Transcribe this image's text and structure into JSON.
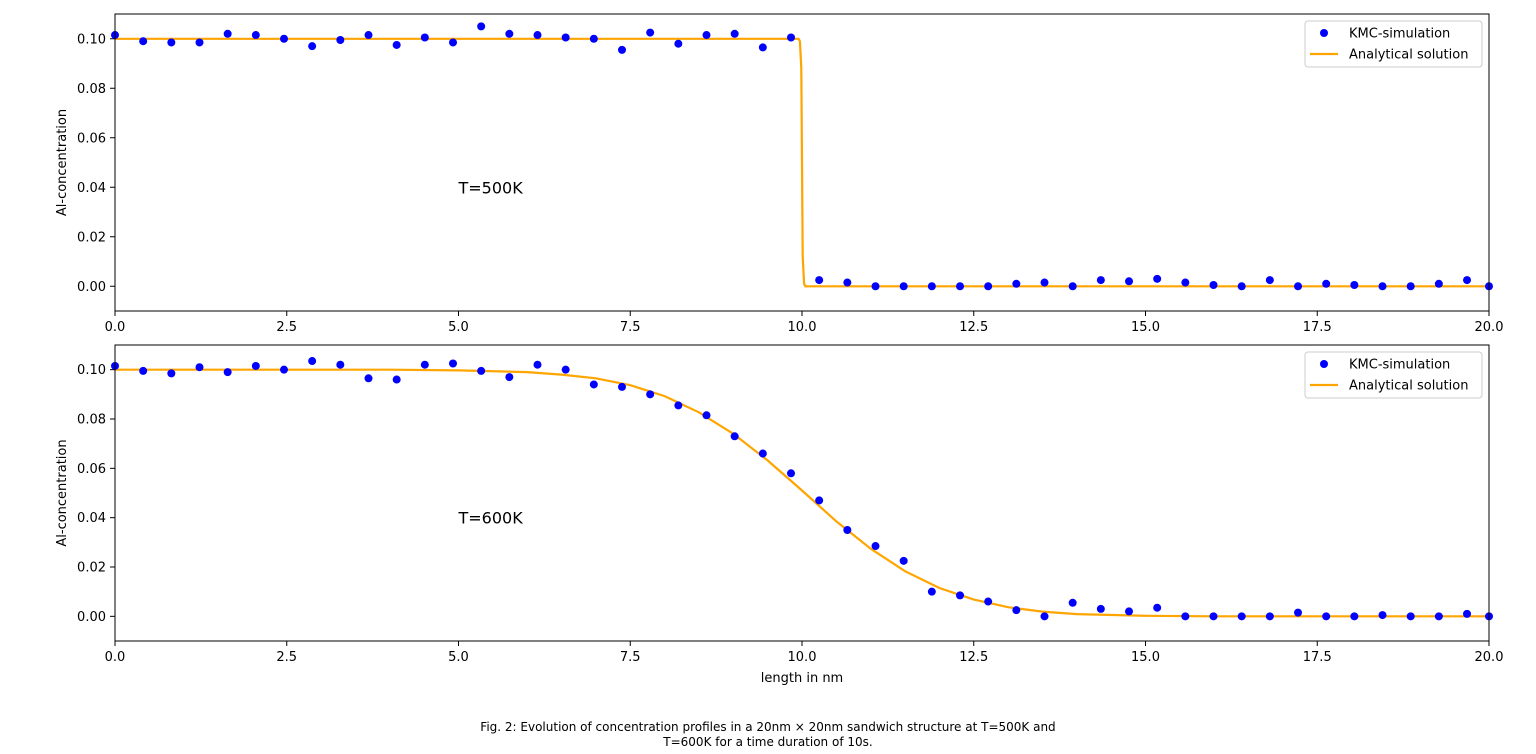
{
  "chart_data": [
    {
      "type": "scatter",
      "annotation": "T=500K",
      "xlabel": "",
      "ylabel": "Al-concentration",
      "xlim": [
        0,
        20
      ],
      "ylim": [
        -0.01,
        0.11
      ],
      "xticks": [
        "0.0",
        "2.5",
        "5.0",
        "7.5",
        "10.0",
        "12.5",
        "15.0",
        "17.5",
        "20.0"
      ],
      "yticks": [
        "0.00",
        "0.02",
        "0.04",
        "0.06",
        "0.08",
        "0.10"
      ],
      "legend": {
        "placement": "top-right",
        "entries": [
          "KMC-simulation",
          "Analytical solution"
        ]
      },
      "series": [
        {
          "name": "KMC-simulation",
          "kind": "scatter",
          "color": "#0000ff",
          "x": [
            0.0,
            0.41,
            0.82,
            1.23,
            1.64,
            2.05,
            2.46,
            2.87,
            3.28,
            3.69,
            4.1,
            4.51,
            4.92,
            5.33,
            5.74,
            6.15,
            6.56,
            6.97,
            7.38,
            7.79,
            8.2,
            8.61,
            9.02,
            9.43,
            9.84,
            10.25,
            10.66,
            11.07,
            11.48,
            11.89,
            12.3,
            12.71,
            13.12,
            13.53,
            13.94,
            14.35,
            14.76,
            15.17,
            15.58,
            15.99,
            16.4,
            16.81,
            17.22,
            17.63,
            18.04,
            18.45,
            18.86,
            19.27,
            19.68,
            20.0
          ],
          "y": [
            0.1015,
            0.099,
            0.0985,
            0.0985,
            0.102,
            0.1015,
            0.1,
            0.097,
            0.0995,
            0.1015,
            0.0975,
            0.1005,
            0.0985,
            0.105,
            0.102,
            0.1015,
            0.1005,
            0.1,
            0.0955,
            0.1025,
            0.098,
            0.1015,
            0.102,
            0.0965,
            0.1005,
            0.0025,
            0.0015,
            0.0,
            0.0,
            0.0,
            0.0,
            0.0,
            0.001,
            0.0015,
            0.0,
            0.0025,
            0.002,
            0.003,
            0.0015,
            0.0005,
            0.0,
            0.0025,
            0.0,
            0.001,
            0.0005,
            0.0,
            0.0,
            0.001,
            0.0025,
            0.0
          ]
        },
        {
          "name": "Analytical solution",
          "kind": "line",
          "color": "#ffa500",
          "x": [
            0,
            9.95,
            9.97,
            9.99,
            10.0,
            10.01,
            10.03,
            10.05,
            20
          ],
          "y": [
            0.1,
            0.1,
            0.099,
            0.088,
            0.05,
            0.012,
            0.001,
            0.0,
            0.0
          ]
        }
      ]
    },
    {
      "type": "scatter",
      "annotation": "T=600K",
      "xlabel": "length in nm",
      "ylabel": "Al-concentration",
      "xlim": [
        0,
        20
      ],
      "ylim": [
        -0.01,
        0.11
      ],
      "xticks": [
        "0.0",
        "2.5",
        "5.0",
        "7.5",
        "10.0",
        "12.5",
        "15.0",
        "17.5",
        "20.0"
      ],
      "yticks": [
        "0.00",
        "0.02",
        "0.04",
        "0.06",
        "0.08",
        "0.10"
      ],
      "legend": {
        "placement": "top-right",
        "entries": [
          "KMC-simulation",
          "Analytical solution"
        ]
      },
      "series": [
        {
          "name": "KMC-simulation",
          "kind": "scatter",
          "color": "#0000ff",
          "x": [
            0.0,
            0.41,
            0.82,
            1.23,
            1.64,
            2.05,
            2.46,
            2.87,
            3.28,
            3.69,
            4.1,
            4.51,
            4.92,
            5.33,
            5.74,
            6.15,
            6.56,
            6.97,
            7.38,
            7.79,
            8.2,
            8.61,
            9.02,
            9.43,
            9.84,
            10.25,
            10.66,
            11.07,
            11.48,
            11.89,
            12.3,
            12.71,
            13.12,
            13.53,
            13.94,
            14.35,
            14.76,
            15.17,
            15.58,
            15.99,
            16.4,
            16.81,
            17.22,
            17.63,
            18.04,
            18.45,
            18.86,
            19.27,
            19.68,
            20.0
          ],
          "y": [
            0.1015,
            0.0995,
            0.0985,
            0.101,
            0.099,
            0.1015,
            0.1,
            0.1035,
            0.102,
            0.0965,
            0.096,
            0.102,
            0.1025,
            0.0995,
            0.097,
            0.102,
            0.1,
            0.094,
            0.093,
            0.09,
            0.0855,
            0.0815,
            0.073,
            0.066,
            0.058,
            0.047,
            0.035,
            0.0285,
            0.0225,
            0.01,
            0.0085,
            0.006,
            0.0025,
            0.0,
            0.0055,
            0.003,
            0.002,
            0.0035,
            0.0,
            0.0,
            0.0,
            0.0,
            0.0015,
            0.0,
            0.0,
            0.0005,
            0.0,
            0.0,
            0.001,
            0.0
          ]
        },
        {
          "name": "Analytical solution",
          "kind": "line",
          "color": "#ffa500",
          "x": [
            0,
            2,
            4,
            5,
            6,
            6.5,
            7,
            7.5,
            8,
            8.5,
            9,
            9.5,
            10,
            10.5,
            11,
            11.5,
            12,
            12.5,
            13,
            13.5,
            14,
            15,
            16,
            18,
            20
          ],
          "y": [
            0.1,
            0.1,
            0.1,
            0.0997,
            0.099,
            0.098,
            0.0965,
            0.0937,
            0.0893,
            0.0827,
            0.074,
            0.0632,
            0.051,
            0.0385,
            0.0274,
            0.0183,
            0.0115,
            0.0068,
            0.0037,
            0.0019,
            0.0009,
            0.0002,
            0.0,
            0.0,
            0.0
          ]
        }
      ]
    }
  ],
  "caption": {
    "line1": "Fig. 2: Evolution of concentration profiles in a 20nm × 20nm sandwich structure at T=500K and",
    "line2": "T=600K for a time duration of 10s."
  }
}
